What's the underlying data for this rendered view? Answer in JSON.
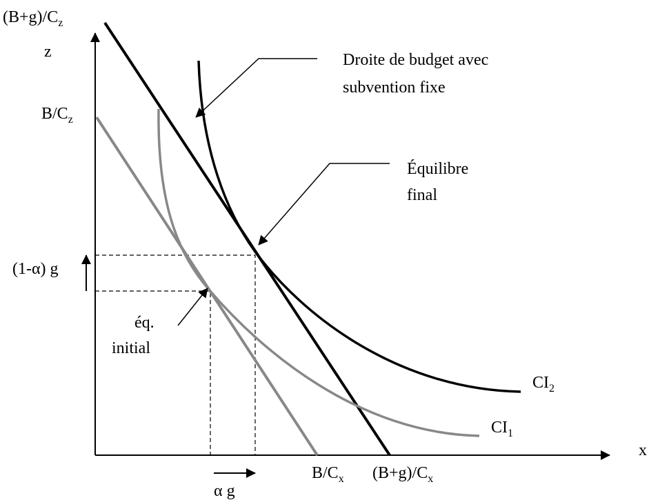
{
  "axes": {
    "y": "z",
    "x": "x"
  },
  "labels": {
    "y_top": {
      "text": "(B+g)/C",
      "sub": "z"
    },
    "y_initial": {
      "text": "B/C",
      "sub": "z"
    },
    "x_initial": {
      "text": "B/C",
      "sub": "x"
    },
    "x_final": {
      "text": "(B+g)/C",
      "sub": "x"
    },
    "delta_z": "(1-α) g",
    "delta_x": "α g",
    "ci2": {
      "text": "CI",
      "sub": "2"
    },
    "ci1": {
      "text": "CI",
      "sub": "1"
    }
  },
  "annotations": {
    "budget": [
      "Droite de budget avec",
      "subvention fixe"
    ],
    "final": [
      "Équilibre",
      "final"
    ],
    "initial": [
      "éq.",
      "initial"
    ]
  }
}
